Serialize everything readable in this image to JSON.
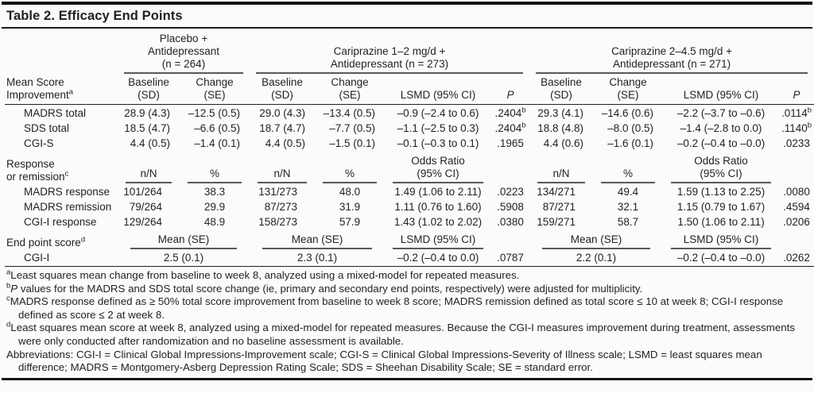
{
  "title": "Table 2. Efficacy End Points",
  "colgroups": {
    "placebo": "Placebo +\nAntidepressant\n(n = 264)",
    "cari12": "Cariprazine 1–2 mg/d +\nAntidepressant (n = 273)",
    "cari245": "Cariprazine 2–4.5 mg/d +\nAntidepressant (n = 271)"
  },
  "mean_section": {
    "label": "Mean Score\nImprovement",
    "label_sup": "a",
    "cols": {
      "baseline": "Baseline\n(SD)",
      "change": "Change\n(SE)",
      "lsmd": "LSMD (95% CI)",
      "p": "P"
    },
    "rows": [
      {
        "name": "MADRS total",
        "pbo_base": "28.9 (4.3)",
        "pbo_chg": "–12.5 (0.5)",
        "c1_base": "29.0 (4.3)",
        "c1_chg": "–13.4 (0.5)",
        "c1_lsmd": "–0.9 (–2.4 to 0.6)",
        "c1_p": ".2404",
        "c1_p_sup": "b",
        "c2_base": "29.3 (4.1)",
        "c2_chg": "–14.6 (0.6)",
        "c2_lsmd": "–2.2 (–3.7 to –0.6)",
        "c2_p": ".0114",
        "c2_p_sup": "b"
      },
      {
        "name": "SDS total",
        "pbo_base": "18.5 (4.7)",
        "pbo_chg": "–6.6 (0.5)",
        "c1_base": "18.7 (4.7)",
        "c1_chg": "–7.7 (0.5)",
        "c1_lsmd": "–1.1 (–2.5 to 0.3)",
        "c1_p": ".2404",
        "c1_p_sup": "b",
        "c2_base": "18.8 (4.8)",
        "c2_chg": "–8.0 (0.5)",
        "c2_lsmd": "–1.4 (–2.8 to 0.0)",
        "c2_p": ".1140",
        "c2_p_sup": "b"
      },
      {
        "name": "CGI-S",
        "pbo_base": "4.4 (0.5)",
        "pbo_chg": "–1.4 (0.1)",
        "c1_base": "4.4 (0.5)",
        "c1_chg": "–1.5 (0.1)",
        "c1_lsmd": "–0.1 (–0.3 to 0.1)",
        "c1_p": ".1965",
        "c1_p_sup": "",
        "c2_base": "4.4 (0.6)",
        "c2_chg": "–1.6 (0.1)",
        "c2_lsmd": "–0.2 (–0.4 to –0.0)",
        "c2_p": ".0233",
        "c2_p_sup": ""
      }
    ]
  },
  "response_section": {
    "label": "Response\nor remission",
    "label_sup": "c",
    "cols": {
      "nn": "n/N",
      "pct": "%",
      "or": "Odds Ratio\n(95% CI)"
    },
    "rows": [
      {
        "name": "MADRS response",
        "pbo_nn": "101/264",
        "pbo_pct": "38.3",
        "c1_nn": "131/273",
        "c1_pct": "48.0",
        "c1_or": "1.49 (1.06 to 2.11)",
        "c1_p": ".0223",
        "c2_nn": "134/271",
        "c2_pct": "49.4",
        "c2_or": "1.59 (1.13 to 2.25)",
        "c2_p": ".0080"
      },
      {
        "name": "MADRS remission",
        "pbo_nn": "79/264",
        "pbo_pct": "29.9",
        "c1_nn": "87/273",
        "c1_pct": "31.9",
        "c1_or": "1.11 (0.76 to 1.60)",
        "c1_p": ".5908",
        "c2_nn": "87/271",
        "c2_pct": "32.1",
        "c2_or": "1.15 (0.79 to 1.67)",
        "c2_p": ".4594"
      },
      {
        "name": "CGI-I response",
        "pbo_nn": "129/264",
        "pbo_pct": "48.9",
        "c1_nn": "158/273",
        "c1_pct": "57.9",
        "c1_or": "1.43 (1.02 to 2.02)",
        "c1_p": ".0380",
        "c2_nn": "159/271",
        "c2_pct": "58.7",
        "c2_or": "1.50 (1.06 to 2.11)",
        "c2_p": ".0206"
      }
    ]
  },
  "endpoint_section": {
    "label": "End point score",
    "label_sup": "d",
    "cols": {
      "mean": "Mean (SE)",
      "lsmd": "LSMD (95% CI)"
    },
    "row": {
      "name": "CGI-I",
      "pbo_mean": "2.5 (0.1)",
      "c1_mean": "2.3 (0.1)",
      "c1_lsmd": "–0.2 (–0.4 to 0.0)",
      "c1_p": ".0787",
      "c2_mean": "2.2 (0.1)",
      "c2_lsmd": "–0.2 (–0.4 to –0.0)",
      "c2_p": ".0262"
    }
  },
  "footnotes": [
    {
      "sup": "a",
      "italic": "",
      "text": "Least squares mean change from baseline to week 8, analyzed using a mixed-model for repeated measures."
    },
    {
      "sup": "b",
      "italic": "P",
      "text": " values for the MADRS and SDS total score change (ie, primary and secondary end points, respectively) were adjusted for multiplicity."
    },
    {
      "sup": "c",
      "italic": "",
      "text": "MADRS response defined as ≥ 50% total score improvement from baseline to week 8 score; MADRS remission defined as total score ≤ 10 at week 8; CGI-I response defined as score ≤ 2 at week 8."
    },
    {
      "sup": "d",
      "italic": "",
      "text": "Least squares mean score at week 8, analyzed using a mixed-model for repeated measures. Because the CGI-I measures improvement during treatment, assessments were only conducted after randomization and no baseline assessment is available."
    },
    {
      "sup": "",
      "italic": "",
      "text": "Abbreviations: CGI-I = Clinical Global Impressions-Improvement scale; CGI-S = Clinical Global Impressions-Severity of Illness scale; LSMD = least squares mean difference; MADRS = Montgomery-Asberg Depression Rating Scale; SDS = Sheehan Disability Scale; SE = standard error."
    }
  ]
}
